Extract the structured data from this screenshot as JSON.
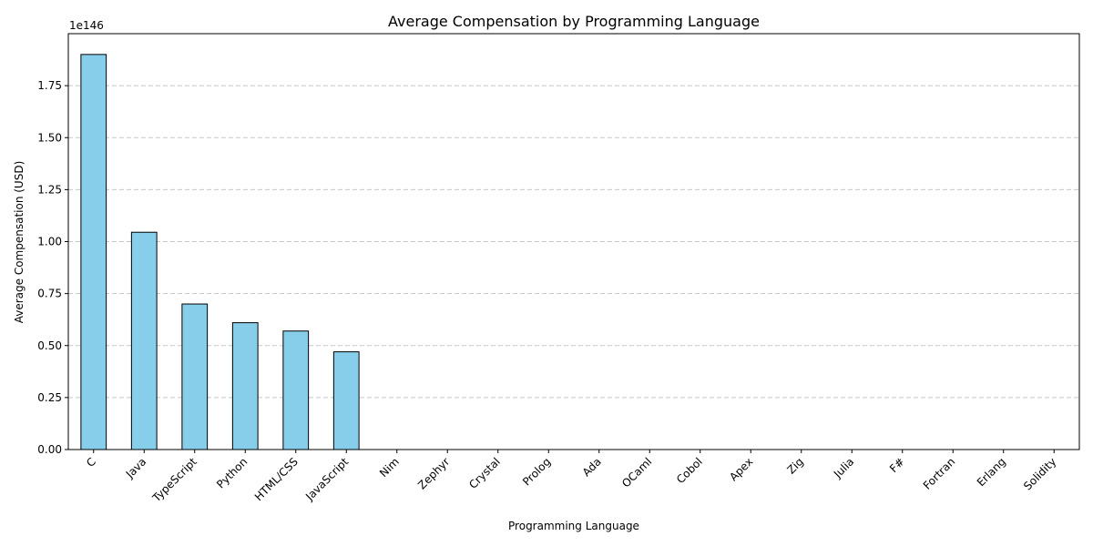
{
  "chart_data": {
    "type": "bar",
    "title": "Average Compensation by Programming Language",
    "x_label": "Programming Language",
    "y_label": "Average Compensation (USD)",
    "y_offset_label": "1e146",
    "categories": [
      "C",
      "Java",
      "TypeScript",
      "Python",
      "HTML/CSS",
      "JavaScript",
      "Nim",
      "Zephyr",
      "Crystal",
      "Prolog",
      "Ada",
      "OCaml",
      "Cobol",
      "Apex",
      "Zig",
      "Julia",
      "F#",
      "Fortran",
      "Erlang",
      "Solidity"
    ],
    "values": [
      1.9,
      1.045,
      0.7,
      0.61,
      0.57,
      0.47,
      0,
      0,
      0,
      0,
      0,
      0,
      0,
      0,
      0,
      0,
      0,
      0,
      0,
      0
    ],
    "color": "#87ceeb",
    "edge_color": "#000000",
    "ylim": [
      0,
      2.0
    ],
    "yticks": [
      {
        "value": 0,
        "label": "0.00"
      },
      0.25,
      {
        "value": 0.5,
        "label": "0.50"
      },
      0.75,
      {
        "value": 1,
        "label": "1.00"
      },
      1.25,
      {
        "value": 1.5,
        "label": "1.50"
      },
      1.75
    ],
    "grid": true
  }
}
